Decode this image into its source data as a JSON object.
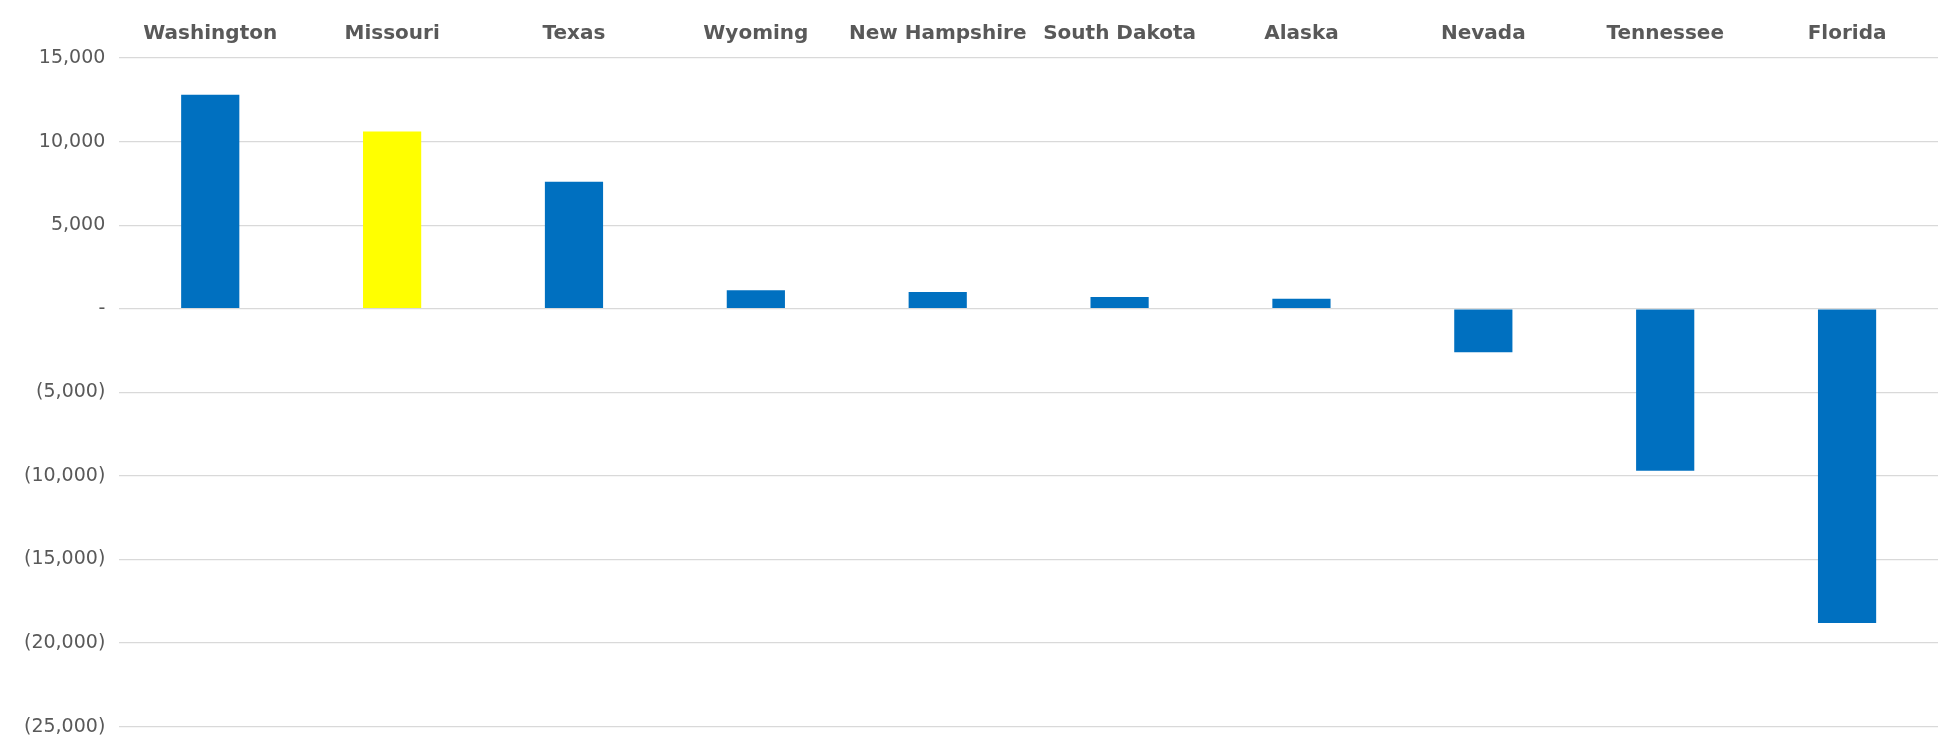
{
  "chart_data": {
    "type": "bar",
    "categories": [
      "Washington",
      "Missouri",
      "Texas",
      "Wyoming",
      "New Hampshire",
      "South Dakota",
      "Alaska",
      "Nevada",
      "Tennessee",
      "Florida"
    ],
    "values": [
      12800,
      10600,
      7600,
      1100,
      1000,
      700,
      600,
      -2600,
      -9700,
      -18800
    ],
    "colors": [
      "#0070c0",
      "#ffff00",
      "#0070c0",
      "#0070c0",
      "#0070c0",
      "#0070c0",
      "#0070c0",
      "#0070c0",
      "#0070c0",
      "#0070c0"
    ],
    "ylim": [
      -25000,
      15000
    ],
    "yticks": [
      {
        "value": 15000,
        "label": "15,000"
      },
      {
        "value": 10000,
        "label": "10,000"
      },
      {
        "value": 5000,
        "label": "5,000"
      },
      {
        "value": 0,
        "label": "-"
      },
      {
        "value": -5000,
        "label": "(5,000)"
      },
      {
        "value": -10000,
        "label": "(10,000)"
      },
      {
        "value": -15000,
        "label": "(15,000)"
      },
      {
        "value": -20000,
        "label": "(20,000)"
      },
      {
        "value": -25000,
        "label": "(25,000)"
      }
    ],
    "grid": "y"
  }
}
